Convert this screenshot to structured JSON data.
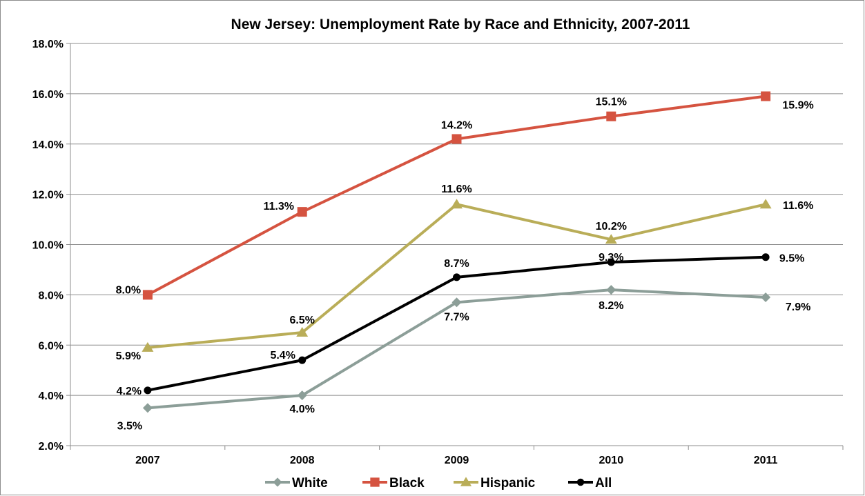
{
  "chart_data": {
    "type": "line",
    "title": "New Jersey: Unemployment Rate by Race and Ethnicity, 2007-2011",
    "xlabel": "",
    "ylabel": "",
    "categories": [
      "2007",
      "2008",
      "2009",
      "2010",
      "2011"
    ],
    "ylim": [
      2.0,
      18.0
    ],
    "yticks": [
      2.0,
      4.0,
      6.0,
      8.0,
      10.0,
      12.0,
      14.0,
      16.0,
      18.0
    ],
    "ytick_labels": [
      "2.0%",
      "4.0%",
      "6.0%",
      "8.0%",
      "10.0%",
      "12.0%",
      "14.0%",
      "16.0%",
      "18.0%"
    ],
    "grid": "horizontal",
    "legend_position": "bottom",
    "series": [
      {
        "name": "White",
        "color": "#8c9e98",
        "marker": "diamond",
        "values": [
          3.5,
          4.0,
          7.7,
          8.2,
          7.9
        ],
        "labels": [
          "3.5%",
          "4.0%",
          "7.7%",
          "8.2%",
          "7.9%"
        ]
      },
      {
        "name": "Black",
        "color": "#d55340",
        "marker": "square",
        "values": [
          8.0,
          11.3,
          14.2,
          15.1,
          15.9
        ],
        "labels": [
          "8.0%",
          "11.3%",
          "14.2%",
          "15.1%",
          "15.9%"
        ]
      },
      {
        "name": "Hispanic",
        "color": "#b9ad58",
        "marker": "triangle",
        "values": [
          5.9,
          6.5,
          11.6,
          10.2,
          11.6
        ],
        "labels": [
          "5.9%",
          "6.5%",
          "11.6%",
          "10.2%",
          "11.6%"
        ]
      },
      {
        "name": "All",
        "color": "#000000",
        "marker": "circle",
        "values": [
          4.2,
          5.4,
          8.7,
          9.3,
          9.5
        ],
        "labels": [
          "4.2%",
          "5.4%",
          "8.7%",
          "9.3%",
          "9.5%"
        ]
      }
    ]
  }
}
